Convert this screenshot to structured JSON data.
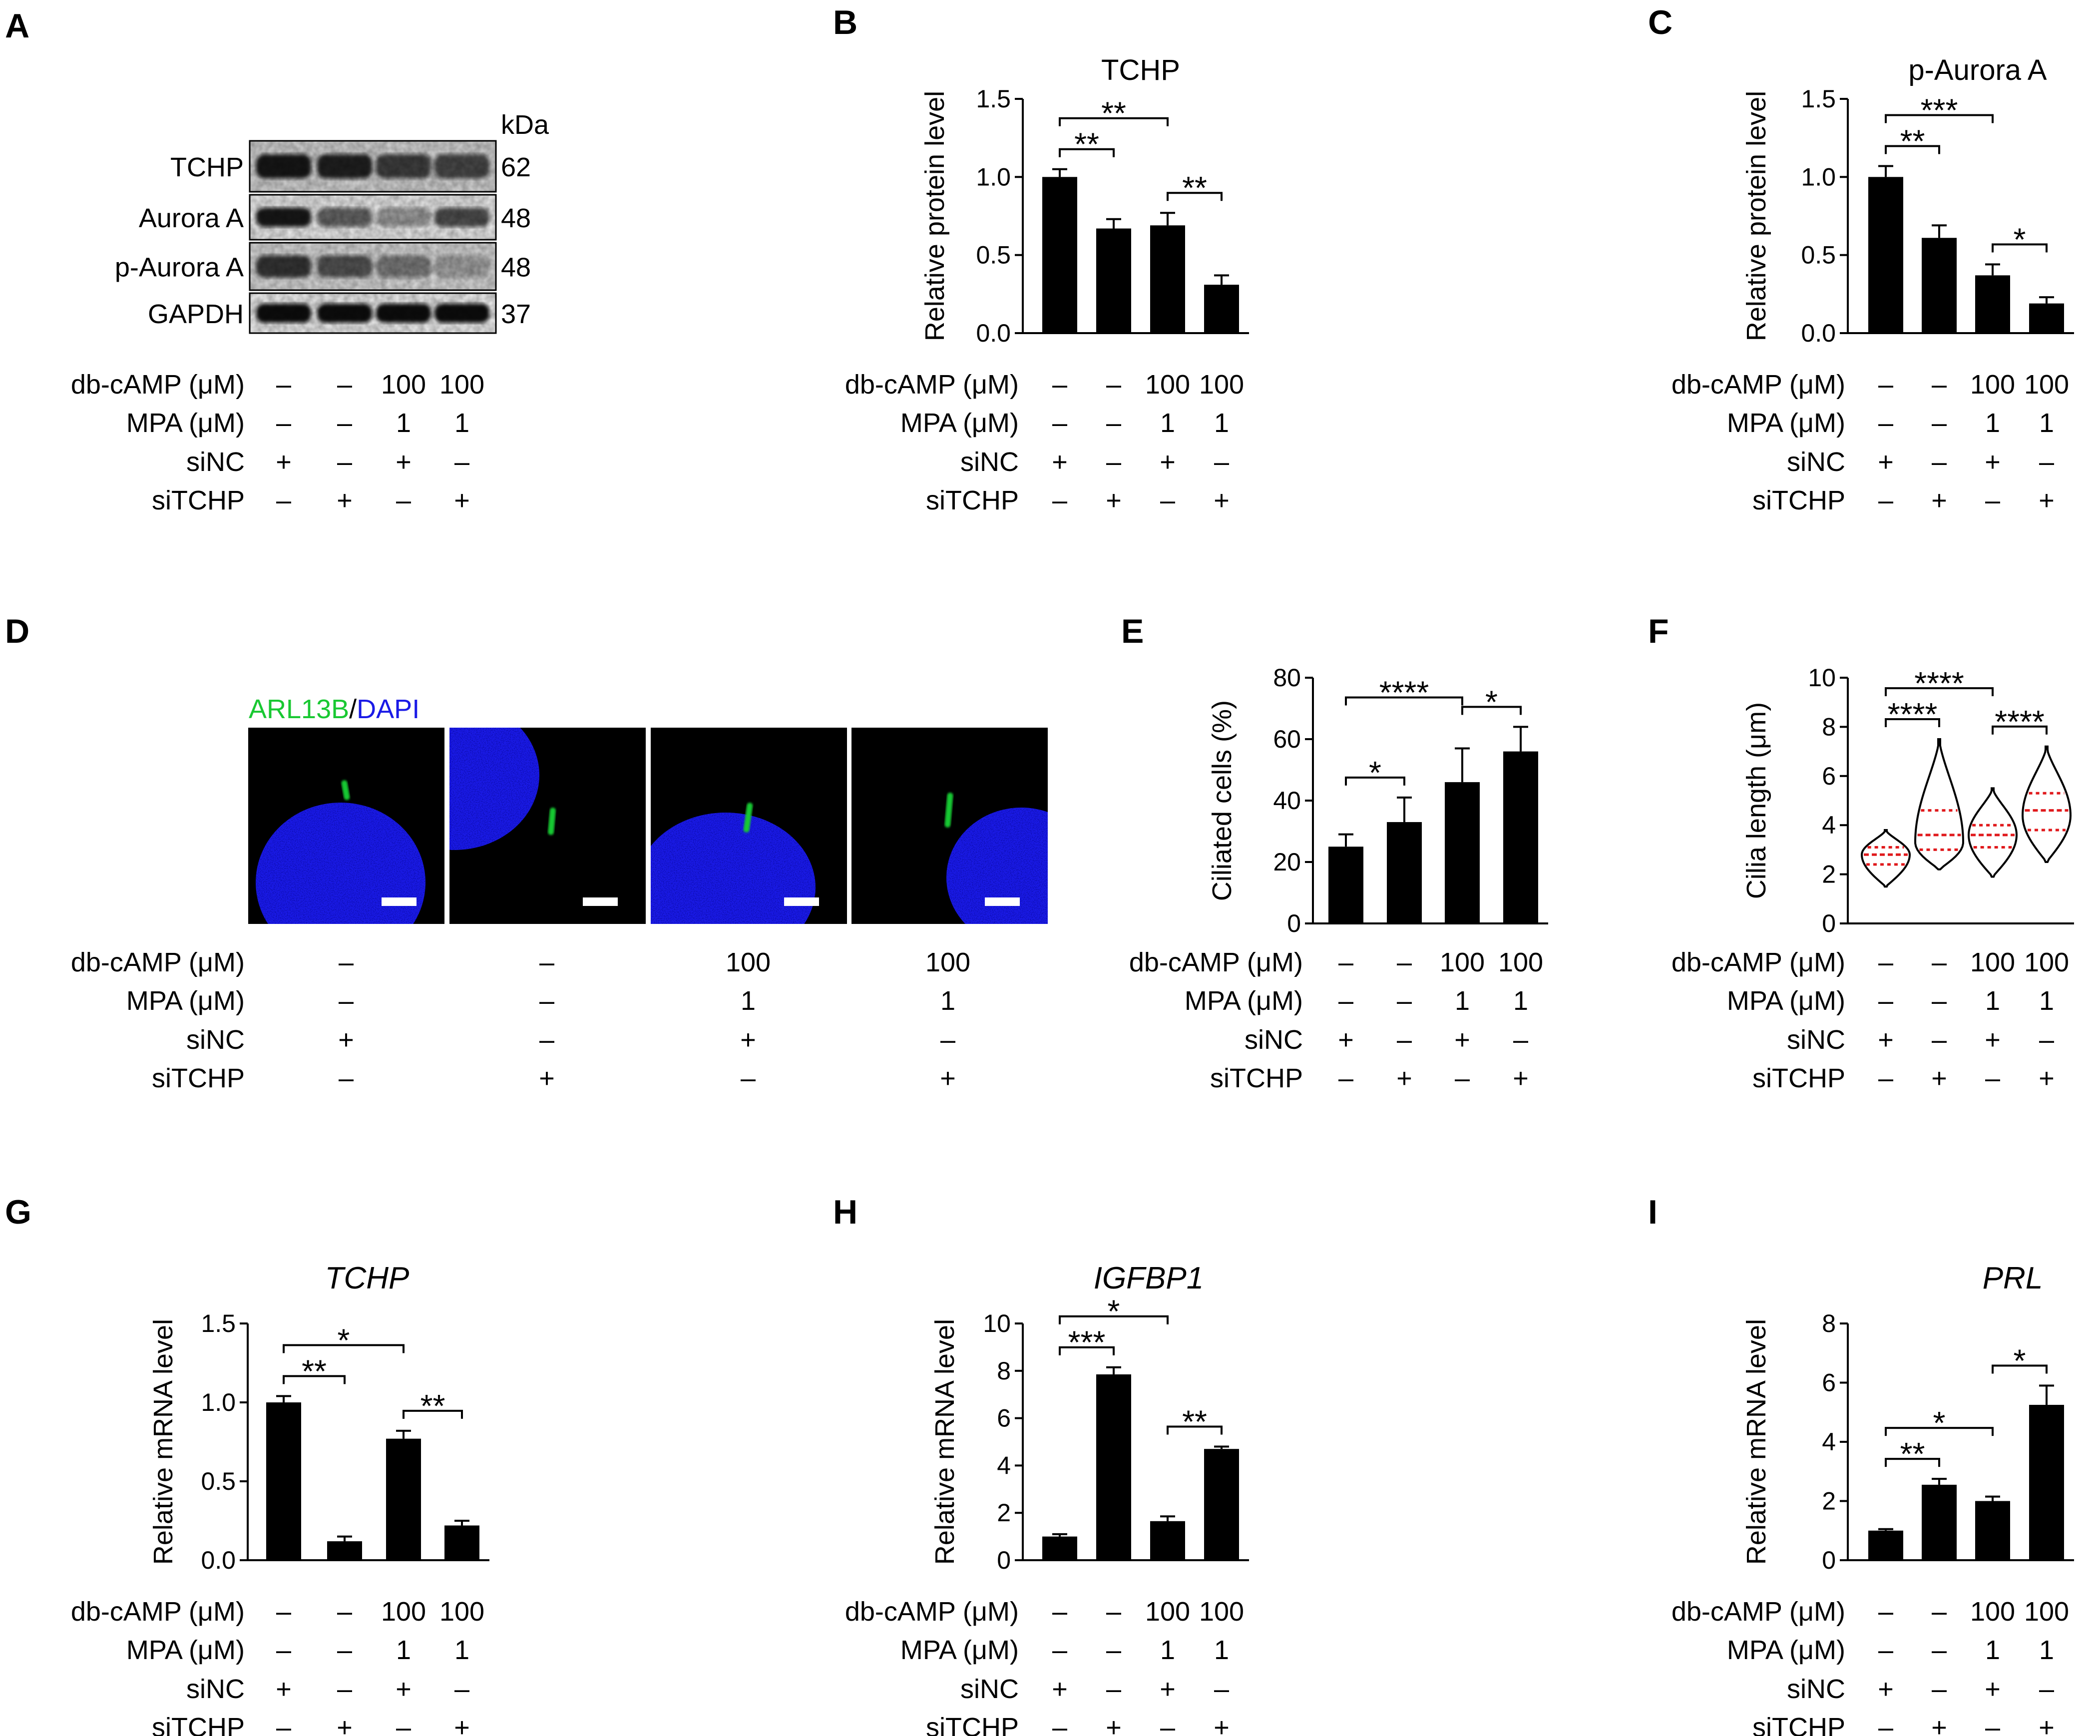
{
  "conditions": {
    "row_labels": [
      "db-cAMP (μM)",
      "MPA (μM)",
      "siNC",
      "siTCHP"
    ],
    "values": [
      [
        "–",
        "–",
        "100",
        "100"
      ],
      [
        "–",
        "–",
        "1",
        "1"
      ],
      [
        "+",
        "–",
        "+",
        "–"
      ],
      [
        "–",
        "+",
        "–",
        "+"
      ]
    ]
  },
  "panel_a": {
    "label": "A",
    "kda_header": "kDa",
    "bands": [
      {
        "name": "TCHP",
        "kda": "62"
      },
      {
        "name": "Aurora A",
        "kda": "48"
      },
      {
        "name": "p-Aurora A",
        "kda": "48"
      },
      {
        "name": "GAPDH",
        "kda": "37"
      }
    ]
  },
  "panel_d": {
    "label": "D",
    "legend_green": "ARL13B",
    "legend_sep": "/",
    "legend_blue": "DAPI",
    "colors": {
      "cilia": "#19c832",
      "nucleus": "#1a1ae6",
      "background": "#000000"
    }
  },
  "chart_data": [
    {
      "id": "B",
      "type": "bar",
      "title": "TCHP",
      "title_italic": false,
      "ylabel": "Relative protein level",
      "ylim": [
        0,
        1.5
      ],
      "yticks": [
        "0.0",
        "0.5",
        "1.0",
        "1.5"
      ],
      "values": [
        1.0,
        0.67,
        0.69,
        0.31
      ],
      "errors": [
        0.05,
        0.06,
        0.08,
        0.06
      ],
      "brackets": [
        {
          "from": 0,
          "to": 1,
          "label": "**"
        },
        {
          "from": 0,
          "to": 2,
          "label": "**"
        },
        {
          "from": 2,
          "to": 3,
          "label": "**"
        }
      ]
    },
    {
      "id": "C",
      "type": "bar",
      "title": "p-Aurora A",
      "title_italic": false,
      "ylabel": "Relative protein level",
      "ylim": [
        0,
        1.5
      ],
      "yticks": [
        "0.0",
        "0.5",
        "1.0",
        "1.5"
      ],
      "values": [
        1.0,
        0.61,
        0.37,
        0.19
      ],
      "errors": [
        0.07,
        0.08,
        0.07,
        0.04
      ],
      "brackets": [
        {
          "from": 0,
          "to": 1,
          "label": "**"
        },
        {
          "from": 0,
          "to": 2,
          "label": "***"
        },
        {
          "from": 2,
          "to": 3,
          "label": "*"
        }
      ]
    },
    {
      "id": "E",
      "type": "bar",
      "title": "",
      "title_italic": false,
      "ylabel": "Ciliated cells (%)",
      "ylim": [
        0,
        80
      ],
      "yticks": [
        "0",
        "20",
        "40",
        "60",
        "80"
      ],
      "values": [
        25,
        33,
        46,
        56
      ],
      "errors": [
        4,
        8,
        11,
        8
      ],
      "brackets": [
        {
          "from": 0,
          "to": 1,
          "label": "*"
        },
        {
          "from": 0,
          "to": 2,
          "label": "****"
        },
        {
          "from": 2,
          "to": 3,
          "label": "*"
        }
      ]
    },
    {
      "id": "F",
      "type": "violin",
      "title": "",
      "title_italic": false,
      "ylabel": "Cilia length (μm)",
      "ylim": [
        0,
        10
      ],
      "yticks": [
        "0",
        "2",
        "4",
        "6",
        "8",
        "10"
      ],
      "violins": [
        {
          "min": 1.5,
          "max": 3.8,
          "q1": 2.4,
          "median": 2.8,
          "q3": 3.1,
          "peak": 2.8
        },
        {
          "min": 2.2,
          "max": 7.5,
          "q1": 3.0,
          "median": 3.6,
          "q3": 4.6,
          "peak": 3.3
        },
        {
          "min": 1.9,
          "max": 5.5,
          "q1": 3.1,
          "median": 3.6,
          "q3": 4.0,
          "peak": 3.6
        },
        {
          "min": 2.5,
          "max": 7.2,
          "q1": 3.8,
          "median": 4.6,
          "q3": 5.3,
          "peak": 4.4
        }
      ],
      "brackets": [
        {
          "from": 0,
          "to": 1,
          "label": "****"
        },
        {
          "from": 0,
          "to": 2,
          "label": "****"
        },
        {
          "from": 2,
          "to": 3,
          "label": "****"
        }
      ]
    },
    {
      "id": "G",
      "type": "bar",
      "title": "TCHP",
      "title_italic": true,
      "ylabel": "Relative mRNA level",
      "ylim": [
        0,
        1.5
      ],
      "yticks": [
        "0.0",
        "0.5",
        "1.0",
        "1.5"
      ],
      "values": [
        1.0,
        0.12,
        0.77,
        0.22
      ],
      "errors": [
        0.04,
        0.03,
        0.05,
        0.03
      ],
      "brackets": [
        {
          "from": 0,
          "to": 1,
          "label": "**"
        },
        {
          "from": 0,
          "to": 2,
          "label": "*"
        },
        {
          "from": 2,
          "to": 3,
          "label": "**"
        }
      ]
    },
    {
      "id": "H",
      "type": "bar",
      "title": "IGFBP1",
      "title_italic": true,
      "ylabel": "Relative mRNA level",
      "ylim": [
        0,
        10
      ],
      "yticks": [
        "0",
        "2",
        "4",
        "6",
        "8",
        "10"
      ],
      "values": [
        1.0,
        7.85,
        1.65,
        4.7
      ],
      "errors": [
        0.1,
        0.3,
        0.2,
        0.1
      ],
      "brackets": [
        {
          "from": 0,
          "to": 1,
          "label": "***"
        },
        {
          "from": 0,
          "to": 2,
          "label": "*"
        },
        {
          "from": 2,
          "to": 3,
          "label": "**"
        }
      ]
    },
    {
      "id": "I",
      "type": "bar",
      "title": "PRL",
      "title_italic": true,
      "ylabel": "Relative mRNA level",
      "ylim": [
        0,
        8
      ],
      "yticks": [
        "0",
        "2",
        "4",
        "6",
        "8"
      ],
      "values": [
        1.0,
        2.55,
        2.0,
        5.25
      ],
      "errors": [
        0.05,
        0.2,
        0.15,
        0.65
      ],
      "brackets": [
        {
          "from": 0,
          "to": 1,
          "label": "**"
        },
        {
          "from": 0,
          "to": 2,
          "label": "*"
        },
        {
          "from": 2,
          "to": 3,
          "label": "*"
        }
      ]
    }
  ]
}
